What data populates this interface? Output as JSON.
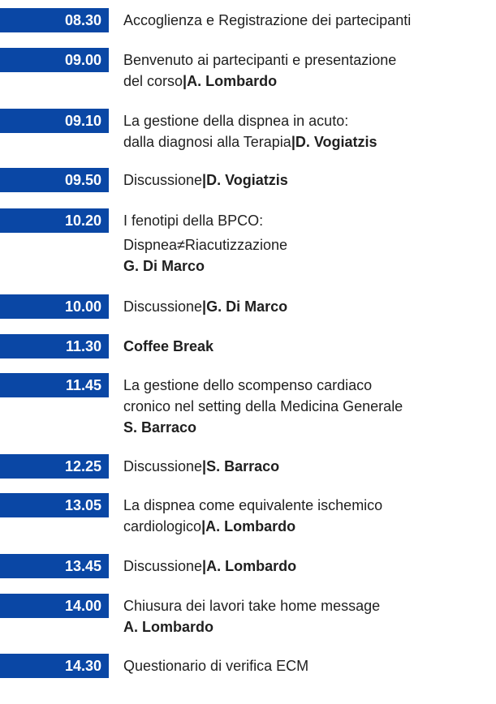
{
  "rows": [
    {
      "time": "08.30",
      "lines": [
        {
          "t": "Accoglienza e Registrazione dei partecipanti"
        }
      ]
    },
    {
      "time": "09.00",
      "lines": [
        {
          "t": "Benvenuto ai partecipanti e presentazione"
        },
        {
          "t": "del corso",
          "sep": "|",
          "b": "A. Lombardo"
        }
      ]
    },
    {
      "time": "09.10",
      "lines": [
        {
          "t": "La gestione della dispnea in acuto:"
        },
        {
          "t": "dalla diagnosi alla Terapia",
          "sep": "|",
          "b": "D. Vogiatzis"
        }
      ]
    },
    {
      "time": "09.50",
      "lines": [
        {
          "t": "Discussione",
          "sep": "|",
          "b": "D. Vogiatzis"
        }
      ]
    },
    {
      "time": "10.20",
      "lines": [
        {
          "t": "I fenotipi della BPCO:"
        },
        {
          "t": "Dispnea≠Riacutizzazione",
          "gap": true
        },
        {
          "b": "G. Di Marco"
        }
      ]
    },
    {
      "time": "10.00",
      "lines": [
        {
          "t": "Discussione",
          "sep": "|",
          "b": "G. Di Marco"
        }
      ]
    },
    {
      "time": "11.30",
      "lines": [
        {
          "b": "Coffee Break"
        }
      ]
    },
    {
      "time": "11.45",
      "lines": [
        {
          "t": "La gestione dello scompenso cardiaco"
        },
        {
          "t": "cronico nel setting della Medicina Generale"
        },
        {
          "b": "S. Barraco"
        }
      ]
    },
    {
      "time": "12.25",
      "lines": [
        {
          "t": "Discussione",
          "sep": "|",
          "b": "S. Barraco"
        }
      ]
    },
    {
      "time": "13.05",
      "lines": [
        {
          "t": "La dispnea come equivalente ischemico"
        },
        {
          "t": "cardiologico",
          "sep": "|",
          "b": "A. Lombardo"
        }
      ]
    },
    {
      "time": "13.45",
      "lines": [
        {
          "t": "Discussione",
          "sep": "|",
          "b": "A. Lombardo"
        }
      ]
    },
    {
      "time": "14.00",
      "lines": [
        {
          "t": "Chiusura dei lavori take home message"
        },
        {
          "b": "A. Lombardo"
        }
      ]
    },
    {
      "time": "14.30",
      "lines": [
        {
          "t": "Questionario di verifica ECM"
        }
      ]
    }
  ],
  "colors": {
    "accent": "#0a47a5",
    "text": "#1f1f1f"
  }
}
